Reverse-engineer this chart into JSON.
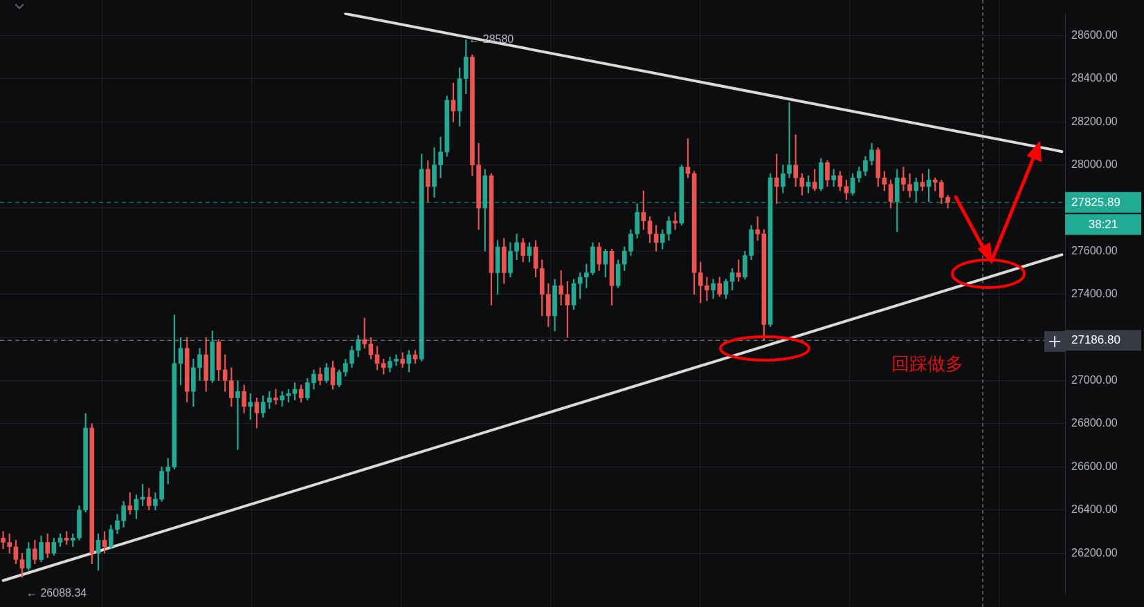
{
  "chart_data": {
    "type": "candlestick",
    "categories": [
      null,
      null,
      null,
      null,
      null,
      null,
      null,
      null,
      null,
      null,
      null,
      null,
      null,
      null,
      null,
      null,
      null,
      null,
      null,
      null,
      null,
      null,
      null,
      null,
      null,
      null,
      null,
      null,
      null,
      null,
      null,
      null,
      null,
      null,
      null,
      null,
      null,
      null,
      null,
      null,
      null,
      null,
      null,
      null,
      null,
      null,
      null,
      null,
      null,
      null,
      null,
      null,
      null,
      null,
      null,
      null,
      null,
      null,
      null,
      null,
      null,
      null,
      null,
      null,
      null,
      null,
      null,
      null,
      null,
      null,
      null,
      null,
      null,
      null,
      null,
      null,
      null,
      null,
      null,
      null,
      null,
      null,
      null,
      null,
      null,
      null,
      null,
      null,
      null,
      null,
      null,
      null,
      null,
      null,
      null,
      null,
      null,
      null,
      null,
      null,
      null,
      null,
      null,
      null,
      null,
      null,
      null,
      null,
      null,
      null,
      null,
      null,
      null,
      null,
      null,
      null,
      null,
      null,
      null,
      null,
      null,
      null,
      null,
      null,
      null,
      null,
      null,
      null,
      null,
      null,
      null,
      null,
      null,
      null,
      null,
      null,
      null,
      null,
      null,
      null,
      null,
      null,
      null,
      null,
      null,
      null,
      null,
      null,
      null,
      null,
      null,
      null,
      null,
      null,
      null,
      null,
      null,
      null,
      null,
      null,
      null,
      null,
      null,
      null,
      null,
      null,
      null,
      null
    ],
    "ohlc": [
      [
        26270,
        26300,
        26220,
        26250
      ],
      [
        26250,
        26290,
        26200,
        26230
      ],
      [
        26230,
        26260,
        26150,
        26170
      ],
      [
        26170,
        26200,
        26088.34,
        26130
      ],
      [
        26130,
        26250,
        26120,
        26220
      ],
      [
        26220,
        26260,
        26150,
        26170
      ],
      [
        26170,
        26280,
        26160,
        26250
      ],
      [
        26250,
        26290,
        26180,
        26200
      ],
      [
        26200,
        26270,
        26190,
        26250
      ],
      [
        26250,
        26290,
        26230,
        26270
      ],
      [
        26270,
        26300,
        26240,
        26260
      ],
      [
        26260,
        26290,
        26230,
        26270
      ],
      [
        26270,
        26420,
        26260,
        26400
      ],
      [
        26400,
        26848,
        26390,
        26780
      ],
      [
        26780,
        26800,
        26150,
        26200
      ],
      [
        26200,
        26290,
        26120,
        26260
      ],
      [
        26260,
        26300,
        26200,
        26230
      ],
      [
        26230,
        26330,
        26220,
        26310
      ],
      [
        26310,
        26380,
        26290,
        26350
      ],
      [
        26350,
        26440,
        26320,
        26420
      ],
      [
        26420,
        26480,
        26380,
        26400
      ],
      [
        26400,
        26470,
        26360,
        26450
      ],
      [
        26450,
        26520,
        26420,
        26460
      ],
      [
        26460,
        26500,
        26400,
        26420
      ],
      [
        26420,
        26480,
        26400,
        26450
      ],
      [
        26450,
        26600,
        26440,
        26580
      ],
      [
        26580,
        26640,
        26520,
        26600
      ],
      [
        26600,
        27305,
        26590,
        27080
      ],
      [
        27080,
        27200,
        26980,
        27150
      ],
      [
        27150,
        27200,
        26900,
        26950
      ],
      [
        26950,
        27100,
        26880,
        27060
      ],
      [
        27060,
        27150,
        27000,
        27120
      ],
      [
        27120,
        27200,
        26950,
        27000
      ],
      [
        27000,
        27230,
        26990,
        27180
      ],
      [
        27180,
        27190,
        27000,
        27050
      ],
      [
        27050,
        27120,
        26950,
        27000
      ],
      [
        27000,
        27060,
        26880,
        26920
      ],
      [
        26920,
        27000,
        26680,
        26950
      ],
      [
        26950,
        26980,
        26850,
        26880
      ],
      [
        26880,
        26940,
        26820,
        26900
      ],
      [
        26900,
        26920,
        26780,
        26850
      ],
      [
        26850,
        26930,
        26830,
        26900
      ],
      [
        26900,
        26950,
        26870,
        26920
      ],
      [
        26920,
        26960,
        26890,
        26910
      ],
      [
        26910,
        26950,
        26880,
        26930
      ],
      [
        26930,
        26960,
        26900,
        26940
      ],
      [
        26940,
        26990,
        26910,
        26960
      ],
      [
        26960,
        26980,
        26900,
        26920
      ],
      [
        26920,
        27010,
        26910,
        26990
      ],
      [
        26990,
        27050,
        26960,
        27030
      ],
      [
        27030,
        27060,
        26980,
        27000
      ],
      [
        27000,
        27080,
        26990,
        27060
      ],
      [
        27060,
        27090,
        26960,
        26980
      ],
      [
        26980,
        27050,
        26970,
        27040
      ],
      [
        27040,
        27100,
        27020,
        27080
      ],
      [
        27080,
        27160,
        27060,
        27140
      ],
      [
        27140,
        27210,
        27110,
        27190
      ],
      [
        27190,
        27290,
        27150,
        27170
      ],
      [
        27170,
        27200,
        27100,
        27120
      ],
      [
        27120,
        27160,
        27050,
        27080
      ],
      [
        27080,
        27100,
        27030,
        27060
      ],
      [
        27060,
        27110,
        27040,
        27090
      ],
      [
        27090,
        27120,
        27070,
        27100
      ],
      [
        27100,
        27130,
        27060,
        27080
      ],
      [
        27080,
        27140,
        27040,
        27120
      ],
      [
        27120,
        27140,
        27080,
        27100
      ],
      [
        27100,
        28050,
        27090,
        27980
      ],
      [
        27980,
        28020,
        27830,
        27900
      ],
      [
        27900,
        28080,
        27850,
        28000
      ],
      [
        28000,
        28130,
        27940,
        28060
      ],
      [
        28060,
        28320,
        28040,
        28300
      ],
      [
        28300,
        28380,
        28200,
        28250
      ],
      [
        28250,
        28450,
        28180,
        28400
      ],
      [
        28400,
        28580,
        28330,
        28500
      ],
      [
        28500,
        28510,
        27950,
        28000
      ],
      [
        28000,
        28100,
        27700,
        27800
      ],
      [
        27800,
        27980,
        27600,
        27950
      ],
      [
        27950,
        27960,
        27350,
        27500
      ],
      [
        27500,
        27650,
        27400,
        27620
      ],
      [
        27620,
        27660,
        27450,
        27500
      ],
      [
        27500,
        27640,
        27480,
        27600
      ],
      [
        27600,
        27680,
        27560,
        27640
      ],
      [
        27640,
        27660,
        27550,
        27580
      ],
      [
        27580,
        27640,
        27550,
        27620
      ],
      [
        27620,
        27650,
        27480,
        27520
      ],
      [
        27520,
        27560,
        27300,
        27400
      ],
      [
        27400,
        27450,
        27250,
        27300
      ],
      [
        27300,
        27470,
        27230,
        27440
      ],
      [
        27440,
        27510,
        27350,
        27400
      ],
      [
        27400,
        27460,
        27200,
        27350
      ],
      [
        27350,
        27470,
        27330,
        27450
      ],
      [
        27450,
        27500,
        27380,
        27480
      ],
      [
        27480,
        27540,
        27430,
        27500
      ],
      [
        27500,
        27640,
        27490,
        27620
      ],
      [
        27620,
        27640,
        27510,
        27540
      ],
      [
        27540,
        27610,
        27480,
        27600
      ],
      [
        27600,
        27610,
        27350,
        27440
      ],
      [
        27440,
        27560,
        27430,
        27540
      ],
      [
        27540,
        27620,
        27510,
        27600
      ],
      [
        27600,
        27700,
        27580,
        27680
      ],
      [
        27680,
        27820,
        27660,
        27780
      ],
      [
        27780,
        27880,
        27700,
        27740
      ],
      [
        27740,
        27760,
        27640,
        27680
      ],
      [
        27680,
        27720,
        27600,
        27640
      ],
      [
        27640,
        27700,
        27610,
        27680
      ],
      [
        27680,
        27760,
        27650,
        27740
      ],
      [
        27740,
        27780,
        27700,
        27730
      ],
      [
        27730,
        28000,
        27720,
        27990
      ],
      [
        27990,
        28121,
        27940,
        27960
      ],
      [
        27960,
        27970,
        27400,
        27500
      ],
      [
        27500,
        27550,
        27360,
        27440
      ],
      [
        27440,
        27480,
        27370,
        27420
      ],
      [
        27420,
        27470,
        27380,
        27450
      ],
      [
        27450,
        27480,
        27390,
        27400
      ],
      [
        27400,
        27470,
        27380,
        27460
      ],
      [
        27460,
        27520,
        27420,
        27500
      ],
      [
        27500,
        27560,
        27460,
        27480
      ],
      [
        27480,
        27600,
        27470,
        27580
      ],
      [
        27580,
        27720,
        27560,
        27700
      ],
      [
        27700,
        27760,
        27650,
        27680
      ],
      [
        27680,
        27700,
        27186.8,
        27260
      ],
      [
        27260,
        27960,
        27250,
        27940
      ],
      [
        27940,
        28050,
        27820,
        27900
      ],
      [
        27900,
        28000,
        27870,
        27960
      ],
      [
        27960,
        28290,
        27940,
        28000
      ],
      [
        28000,
        28140,
        27900,
        27940
      ],
      [
        27940,
        27960,
        27860,
        27900
      ],
      [
        27900,
        27950,
        27870,
        27920
      ],
      [
        27920,
        27980,
        27880,
        27890
      ],
      [
        27890,
        28030,
        27880,
        28010
      ],
      [
        28010,
        28020,
        27900,
        27930
      ],
      [
        27930,
        27980,
        27900,
        27950
      ],
      [
        27950,
        27970,
        27880,
        27900
      ],
      [
        27900,
        27930,
        27840,
        27870
      ],
      [
        27870,
        27960,
        27860,
        27940
      ],
      [
        27940,
        27990,
        27920,
        27970
      ],
      [
        27970,
        28040,
        27950,
        28020
      ],
      [
        28020,
        28100,
        28000,
        28070
      ],
      [
        28070,
        28080,
        27900,
        27940
      ],
      [
        27940,
        27970,
        27880,
        27910
      ],
      [
        27910,
        27930,
        27800,
        27830
      ],
      [
        27830,
        27980,
        27690,
        27940
      ],
      [
        27940,
        27990,
        27880,
        27910
      ],
      [
        27910,
        27960,
        27850,
        27880
      ],
      [
        27880,
        27940,
        27830,
        27920
      ],
      [
        27920,
        27960,
        27880,
        27900
      ],
      [
        27900,
        27980,
        27830,
        27930
      ],
      [
        27930,
        27940,
        27880,
        27920
      ],
      [
        27920,
        27930,
        27820,
        27850
      ],
      [
        27850,
        27860,
        27800,
        27825.89
      ],
      null,
      null,
      null,
      null,
      null,
      null,
      null,
      null,
      null,
      null,
      null,
      null,
      null,
      null,
      null,
      null,
      null,
      null
    ],
    "series": [
      {
        "type": "line",
        "color": "#d9d9d9",
        "values": [
          26073,
          null,
          null,
          null,
          null,
          null,
          null,
          null,
          null,
          null,
          null,
          null,
          null,
          null,
          null,
          null,
          null,
          null,
          null,
          null,
          null,
          null,
          null,
          null,
          null,
          null,
          null,
          null,
          null,
          null,
          null,
          null,
          null,
          null,
          null,
          null,
          null,
          null,
          null,
          null,
          null,
          null,
          null,
          null,
          null,
          null,
          null,
          null,
          null,
          null,
          null,
          null,
          null,
          null,
          null,
          null,
          null,
          null,
          null,
          null,
          null,
          null,
          null,
          null,
          null,
          null,
          null,
          null,
          null,
          null,
          null,
          null,
          null,
          null,
          null,
          null,
          null,
          null,
          null,
          null,
          null,
          null,
          null,
          null,
          null,
          null,
          null,
          null,
          null,
          null,
          null,
          null,
          null,
          null,
          null,
          null,
          null,
          null,
          null,
          null,
          null,
          null,
          null,
          null,
          null,
          null,
          null,
          null,
          null,
          null,
          null,
          null,
          null,
          null,
          null,
          null,
          null,
          null,
          null,
          null,
          null,
          null,
          null,
          null,
          null,
          null,
          null,
          null,
          null,
          null,
          null,
          null,
          null,
          null,
          null,
          null,
          null,
          null,
          null,
          null,
          null,
          null,
          null,
          null,
          null,
          null,
          null,
          null,
          null,
          null,
          null,
          null,
          null,
          null,
          null,
          null,
          null,
          null,
          null,
          null,
          null,
          null,
          null,
          null,
          null,
          null,
          null,
          27584
        ]
      },
      {
        "type": "line",
        "color": "#d9d9d9",
        "values": [
          null,
          null,
          null,
          null,
          null,
          null,
          null,
          null,
          null,
          null,
          null,
          null,
          null,
          null,
          null,
          null,
          null,
          null,
          null,
          null,
          null,
          null,
          null,
          null,
          null,
          null,
          null,
          null,
          null,
          null,
          null,
          null,
          null,
          null,
          null,
          null,
          null,
          null,
          null,
          null,
          null,
          null,
          null,
          null,
          null,
          null,
          null,
          null,
          null,
          null,
          null,
          null,
          null,
          null,
          28701,
          null,
          null,
          null,
          null,
          null,
          null,
          null,
          null,
          null,
          null,
          null,
          null,
          null,
          null,
          null,
          null,
          null,
          null,
          null,
          null,
          null,
          null,
          null,
          null,
          null,
          null,
          null,
          null,
          null,
          null,
          null,
          null,
          null,
          null,
          null,
          null,
          null,
          null,
          null,
          null,
          null,
          null,
          null,
          null,
          null,
          null,
          null,
          null,
          null,
          null,
          null,
          null,
          null,
          null,
          null,
          null,
          null,
          null,
          null,
          null,
          null,
          null,
          null,
          null,
          null,
          null,
          null,
          null,
          null,
          null,
          null,
          null,
          null,
          null,
          null,
          null,
          null,
          null,
          null,
          null,
          null,
          null,
          null,
          null,
          null,
          null,
          null,
          null,
          null,
          null,
          null,
          null,
          null,
          null,
          null,
          null,
          null,
          null,
          null,
          null,
          null,
          null,
          null,
          null,
          null,
          null,
          null,
          null,
          null,
          null,
          null,
          null,
          28062
        ]
      }
    ],
    "ylim": [
      26010,
      28705
    ],
    "yticks": [
      {
        "value": 26200,
        "label": "26200.00"
      },
      {
        "value": 26400,
        "label": "26400.00"
      },
      {
        "value": 26600,
        "label": "26600.00"
      },
      {
        "value": 26800,
        "label": "26800.00"
      },
      {
        "value": 27000,
        "label": "27000.00"
      },
      {
        "value": 27200,
        "label": null
      },
      {
        "value": 27400,
        "label": "27400.00"
      },
      {
        "value": 27600,
        "label": "27600.00"
      },
      {
        "value": 27800,
        "label": null
      },
      {
        "value": 28000,
        "label": "28000.00"
      },
      {
        "value": 28200,
        "label": "28200.00"
      },
      {
        "value": 28400,
        "label": "28400.00"
      },
      {
        "value": 28600,
        "label": "28600.00"
      }
    ],
    "grid": "y",
    "tick_labels": "y",
    "ref_lines": [
      {
        "axis": "y",
        "value": 27825.89,
        "label": "27825.89",
        "color": "#22ab94",
        "line_style": "dashed"
      },
      {
        "axis": "y",
        "value": 27186.8,
        "label": "27186.80",
        "color": "#9598a1",
        "line_style": "dashed"
      }
    ],
    "annotations": [
      {
        "text": "← 28580",
        "y": 28580
      },
      "← 26088.34",
      "回踩做多",
      "38:21"
    ]
  }
}
